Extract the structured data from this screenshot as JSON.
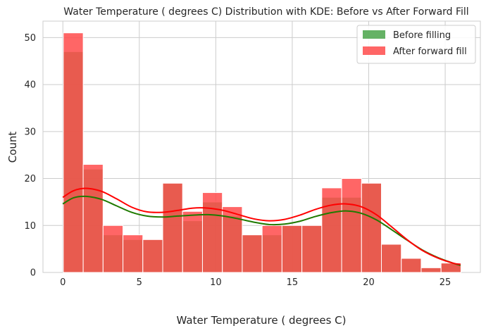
{
  "chart_data": {
    "type": "bar",
    "title": "Water Temperature ( degrees C) Distribution with KDE: Before vs After Forward Fill",
    "xlabel": "Water Temperature ( degrees C)",
    "ylabel": "Count",
    "xlim": [
      -1.3,
      27.3
    ],
    "ylim": [
      0,
      53.5
    ],
    "xticks": [
      0,
      5,
      10,
      15,
      20,
      25
    ],
    "yticks": [
      0,
      10,
      20,
      30,
      40,
      50
    ],
    "grid": true,
    "legend_position": "top-right",
    "bins": {
      "start": 0.03,
      "width": 1.3,
      "count": 20
    },
    "series": [
      {
        "name": "Before filling",
        "color": "#4aa54a",
        "values": [
          47,
          22,
          8,
          7,
          7,
          19,
          11,
          15,
          12,
          8,
          8,
          10,
          10,
          16,
          16,
          19,
          6,
          3,
          1,
          2
        ]
      },
      {
        "name": "After forward fill",
        "color": "#ff4b4b",
        "values": [
          51,
          23,
          10,
          8,
          7,
          19,
          13,
          17,
          14,
          8,
          10,
          10,
          10,
          18,
          20,
          19,
          6,
          3,
          1,
          2
        ]
      }
    ],
    "kde": [
      {
        "series": "Before filling",
        "color": "#1f7a00",
        "x": [
          0,
          0.7,
          1.5,
          2.5,
          3.5,
          4.5,
          5.5,
          6.5,
          7.5,
          8.5,
          9.5,
          10.5,
          11.5,
          12.5,
          13.5,
          14.5,
          15.5,
          16.5,
          17.5,
          18.5,
          19.5,
          20.5,
          21.5,
          22.5,
          23.5,
          24.5,
          25.5,
          26
        ],
        "y": [
          14.6,
          15.9,
          16.2,
          15.6,
          14.2,
          12.8,
          12.0,
          11.8,
          12.0,
          12.2,
          12.3,
          12.0,
          11.4,
          10.7,
          10.2,
          10.3,
          10.9,
          11.9,
          12.7,
          13.1,
          12.6,
          11.2,
          9.1,
          6.9,
          4.8,
          3.2,
          2.0,
          1.5
        ]
      },
      {
        "series": "After forward fill",
        "color": "#ff0000",
        "x": [
          0,
          0.7,
          1.5,
          2.5,
          3.5,
          4.5,
          5.5,
          6.5,
          7.5,
          8.5,
          9.5,
          10.5,
          11.5,
          12.5,
          13.5,
          14.5,
          15.5,
          16.5,
          17.5,
          18.5,
          19.5,
          20.5,
          21.5,
          22.5,
          23.5,
          24.5,
          25.5,
          26
        ],
        "y": [
          16.0,
          17.4,
          17.9,
          17.3,
          15.7,
          13.9,
          12.9,
          12.8,
          13.2,
          13.7,
          13.7,
          13.2,
          12.3,
          11.4,
          11.0,
          11.3,
          12.2,
          13.4,
          14.3,
          14.6,
          14.0,
          12.3,
          9.7,
          7.0,
          4.7,
          3.1,
          2.0,
          1.7
        ]
      }
    ]
  }
}
